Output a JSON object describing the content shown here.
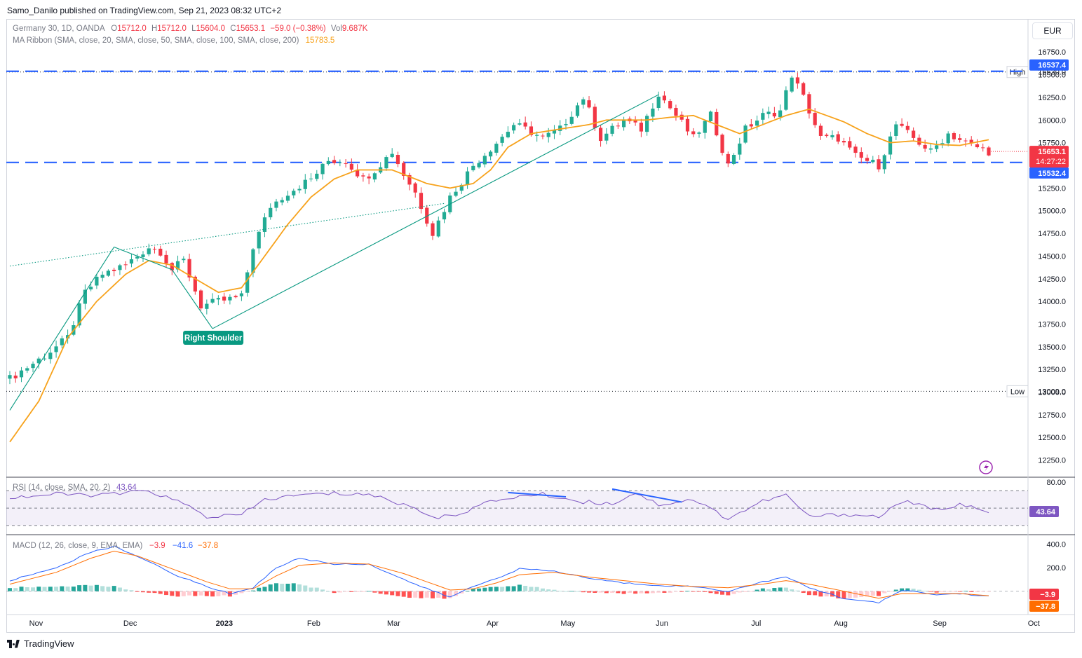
{
  "header": {
    "publisher": "Samo_Danilo published on TradingView.com, Sep 21, 2023 08:32 UTC+2",
    "symbol_line": "Germany 30, 1D, OANDA",
    "ohlc": {
      "o_label": "O",
      "o": "15712.0",
      "h_label": "H",
      "h": "15712.0",
      "l_label": "L",
      "l": "15604.0",
      "c_label": "C",
      "c": "15653.1",
      "change": "−59.0 (−0.38%)",
      "vol_label": "Vol",
      "vol": "9.687K"
    },
    "ma_line": "MA Ribbon (SMA, close, 20, SMA, close, 50, SMA, close, 100, SMA, close, 200)",
    "ma_value": "15783.5",
    "currency": "EUR"
  },
  "colors": {
    "up": "#22ab94",
    "down": "#f23645",
    "ma": "#f7a21b",
    "level": "#2962ff",
    "trend": "#089981",
    "rsi": "#7e57c2",
    "macd": "#2962ff",
    "signal": "#ff6d00"
  },
  "chart_data": [
    {
      "type": "candlestick",
      "title": "Germany 30, 1D, OANDA",
      "yticks": [
        16750,
        16500,
        16250,
        16000,
        15750,
        15500,
        15250,
        15000,
        14750,
        14500,
        14250,
        14000,
        13750,
        13500,
        13250,
        13000,
        12750,
        12500,
        12250
      ],
      "ytick_labels": [
        "16750.0",
        "16500.0",
        "16250.0",
        "16000.0",
        "15750.0",
        "15500.0",
        "15250.0",
        "15000.0",
        "14750.0",
        "14500.0",
        "14250.0",
        "14000.0",
        "13750.0",
        "13500.0",
        "13250.0",
        "13000.0",
        "12750.0",
        "12500.0",
        "12250.0"
      ],
      "ylim": [
        12100,
        16860
      ],
      "x_labels": [
        "Nov",
        "Dec",
        "2023",
        "Feb",
        "Mar",
        "Apr",
        "May",
        "Jun",
        "Jul",
        "Aug",
        "Sep",
        "Oct"
      ],
      "close_path": [
        [
          0,
          13150
        ],
        [
          6,
          13400
        ],
        [
          10,
          13600
        ],
        [
          13,
          14100
        ],
        [
          16,
          14300
        ],
        [
          20,
          14400
        ],
        [
          24,
          14600
        ],
        [
          26,
          14550
        ],
        [
          28,
          14350
        ],
        [
          30,
          14450
        ],
        [
          33,
          13950
        ],
        [
          36,
          14000
        ],
        [
          40,
          14050
        ],
        [
          42,
          14600
        ],
        [
          45,
          15050
        ],
        [
          48,
          15200
        ],
        [
          52,
          15350
        ],
        [
          55,
          15550
        ],
        [
          58,
          15550
        ],
        [
          61,
          15350
        ],
        [
          63,
          15450
        ],
        [
          66,
          15650
        ],
        [
          68,
          15400
        ],
        [
          70,
          15200
        ],
        [
          73,
          14750
        ],
        [
          76,
          15150
        ],
        [
          80,
          15500
        ],
        [
          84,
          15750
        ],
        [
          87,
          15950
        ],
        [
          89,
          15900
        ],
        [
          92,
          15800
        ],
        [
          95,
          15900
        ],
        [
          99,
          16250
        ],
        [
          102,
          15800
        ],
        [
          106,
          16000
        ],
        [
          109,
          15900
        ],
        [
          112,
          16300
        ],
        [
          115,
          16050
        ],
        [
          118,
          15800
        ],
        [
          121,
          16050
        ],
        [
          124,
          15500
        ],
        [
          127,
          15900
        ],
        [
          130,
          16050
        ],
        [
          133,
          16100
        ],
        [
          135,
          16500
        ],
        [
          137,
          16250
        ],
        [
          140,
          15800
        ],
        [
          143,
          15800
        ],
        [
          146,
          15600
        ],
        [
          150,
          15500
        ],
        [
          153,
          15950
        ],
        [
          156,
          15800
        ],
        [
          159,
          15650
        ],
        [
          162,
          15850
        ],
        [
          165,
          15750
        ],
        [
          167,
          15700
        ],
        [
          169,
          15653
        ]
      ],
      "ma20_path": [
        [
          0,
          12450
        ],
        [
          5,
          12900
        ],
        [
          10,
          13600
        ],
        [
          15,
          14000
        ],
        [
          20,
          14300
        ],
        [
          24,
          14450
        ],
        [
          28,
          14400
        ],
        [
          32,
          14250
        ],
        [
          36,
          14100
        ],
        [
          40,
          14150
        ],
        [
          44,
          14500
        ],
        [
          48,
          14850
        ],
        [
          52,
          15150
        ],
        [
          56,
          15350
        ],
        [
          60,
          15450
        ],
        [
          63,
          15450
        ],
        [
          66,
          15450
        ],
        [
          68,
          15400
        ],
        [
          72,
          15300
        ],
        [
          76,
          15250
        ],
        [
          80,
          15300
        ],
        [
          83,
          15450
        ],
        [
          86,
          15700
        ],
        [
          90,
          15850
        ],
        [
          95,
          15900
        ],
        [
          100,
          15950
        ],
        [
          103,
          16000
        ],
        [
          106,
          16000
        ],
        [
          110,
          16000
        ],
        [
          114,
          16030
        ],
        [
          118,
          16050
        ],
        [
          122,
          15950
        ],
        [
          126,
          15850
        ],
        [
          130,
          15950
        ],
        [
          134,
          16050
        ],
        [
          138,
          16120
        ],
        [
          141,
          16050
        ],
        [
          144,
          15980
        ],
        [
          148,
          15850
        ],
        [
          152,
          15750
        ],
        [
          156,
          15770
        ],
        [
          160,
          15730
        ],
        [
          164,
          15720
        ],
        [
          169,
          15783
        ]
      ],
      "series": [
        {
          "name": "MA Ribbon",
          "values": [
            15783.5
          ]
        }
      ],
      "levels": [
        {
          "label": "16537.4",
          "value": 16537.4,
          "style": "dashed"
        },
        {
          "label": "15532.4",
          "value": 15532.4,
          "style": "dashed"
        }
      ],
      "extremes": [
        {
          "tag": "High",
          "label": "16530.0",
          "value": 16530
        },
        {
          "tag": "Low",
          "label": "13009.0",
          "value": 13009
        }
      ],
      "last_price": {
        "label": "15653.1",
        "countdown": "14:27:22",
        "value": 15653.1
      },
      "annotations": [
        {
          "text": "Right Shoulder"
        }
      ],
      "trendlines": [
        {
          "style": "solid",
          "points": [
            [
              0,
              12800
            ],
            [
              18,
              14600
            ]
          ]
        },
        {
          "style": "solid",
          "points": [
            [
              18,
              14600
            ],
            [
              28,
              14350
            ]
          ]
        },
        {
          "style": "solid",
          "points": [
            [
              28,
              14350
            ],
            [
              35,
              13700
            ]
          ]
        },
        {
          "style": "solid",
          "points": [
            [
              35,
              13700
            ],
            [
              112,
              16280
            ]
          ]
        },
        {
          "style": "dotted",
          "points": [
            [
              0,
              14390
            ],
            [
              75,
              15080
            ]
          ]
        }
      ]
    },
    {
      "type": "line",
      "title": "RSI (14, close, SMA, 20, 2)",
      "value_label": "43.64",
      "yticks": [
        80
      ],
      "ytick_labels": [
        "80.00"
      ],
      "band": [
        30,
        70
      ],
      "ylim": [
        25,
        80
      ],
      "rsi_path": [
        [
          0,
          62
        ],
        [
          8,
          66
        ],
        [
          16,
          65
        ],
        [
          24,
          70
        ],
        [
          30,
          55
        ],
        [
          34,
          40
        ],
        [
          40,
          42
        ],
        [
          44,
          60
        ],
        [
          50,
          65
        ],
        [
          56,
          67
        ],
        [
          62,
          66
        ],
        [
          66,
          58
        ],
        [
          70,
          50
        ],
        [
          74,
          38
        ],
        [
          78,
          45
        ],
        [
          82,
          55
        ],
        [
          86,
          62
        ],
        [
          92,
          66
        ],
        [
          98,
          58
        ],
        [
          104,
          55
        ],
        [
          108,
          68
        ],
        [
          112,
          54
        ],
        [
          118,
          60
        ],
        [
          124,
          38
        ],
        [
          130,
          58
        ],
        [
          134,
          65
        ],
        [
          138,
          40
        ],
        [
          144,
          43
        ],
        [
          150,
          40
        ],
        [
          154,
          58
        ],
        [
          160,
          48
        ],
        [
          164,
          55
        ],
        [
          169,
          44
        ]
      ]
    },
    {
      "type": "bar",
      "title": "MACD (12, 26, close, 9, EMA, EMA)",
      "values_shown": [
        "−3.9",
        "−41.6",
        "−37.8"
      ],
      "yticks": [
        400,
        200
      ],
      "ytick_labels": [
        "400.0",
        "200.0"
      ],
      "right_labels": [
        "−3.9",
        "−37.8"
      ],
      "ylim": [
        -180,
        450
      ],
      "macd_path": [
        [
          0,
          90
        ],
        [
          8,
          200
        ],
        [
          14,
          330
        ],
        [
          18,
          380
        ],
        [
          22,
          300
        ],
        [
          28,
          150
        ],
        [
          34,
          40
        ],
        [
          38,
          -20
        ],
        [
          42,
          30
        ],
        [
          46,
          200
        ],
        [
          50,
          280
        ],
        [
          56,
          230
        ],
        [
          62,
          230
        ],
        [
          68,
          100
        ],
        [
          72,
          20
        ],
        [
          76,
          -50
        ],
        [
          80,
          40
        ],
        [
          84,
          110
        ],
        [
          88,
          190
        ],
        [
          94,
          170
        ],
        [
          100,
          110
        ],
        [
          106,
          70
        ],
        [
          112,
          50
        ],
        [
          118,
          40
        ],
        [
          124,
          0
        ],
        [
          130,
          80
        ],
        [
          134,
          120
        ],
        [
          138,
          30
        ],
        [
          144,
          -60
        ],
        [
          150,
          -100
        ],
        [
          154,
          10
        ],
        [
          160,
          -30
        ],
        [
          164,
          -20
        ],
        [
          169,
          -41.6
        ]
      ],
      "signal_path": [
        [
          0,
          60
        ],
        [
          8,
          160
        ],
        [
          14,
          280
        ],
        [
          18,
          340
        ],
        [
          22,
          300
        ],
        [
          28,
          190
        ],
        [
          34,
          80
        ],
        [
          38,
          20
        ],
        [
          42,
          20
        ],
        [
          46,
          130
        ],
        [
          50,
          220
        ],
        [
          56,
          240
        ],
        [
          62,
          230
        ],
        [
          68,
          150
        ],
        [
          72,
          80
        ],
        [
          76,
          10
        ],
        [
          80,
          20
        ],
        [
          84,
          70
        ],
        [
          88,
          140
        ],
        [
          94,
          160
        ],
        [
          100,
          120
        ],
        [
          106,
          90
        ],
        [
          112,
          60
        ],
        [
          118,
          40
        ],
        [
          124,
          30
        ],
        [
          130,
          60
        ],
        [
          134,
          90
        ],
        [
          138,
          60
        ],
        [
          144,
          0
        ],
        [
          150,
          -60
        ],
        [
          154,
          -20
        ],
        [
          160,
          -20
        ],
        [
          164,
          -20
        ],
        [
          169,
          -37.8
        ]
      ]
    }
  ]
}
